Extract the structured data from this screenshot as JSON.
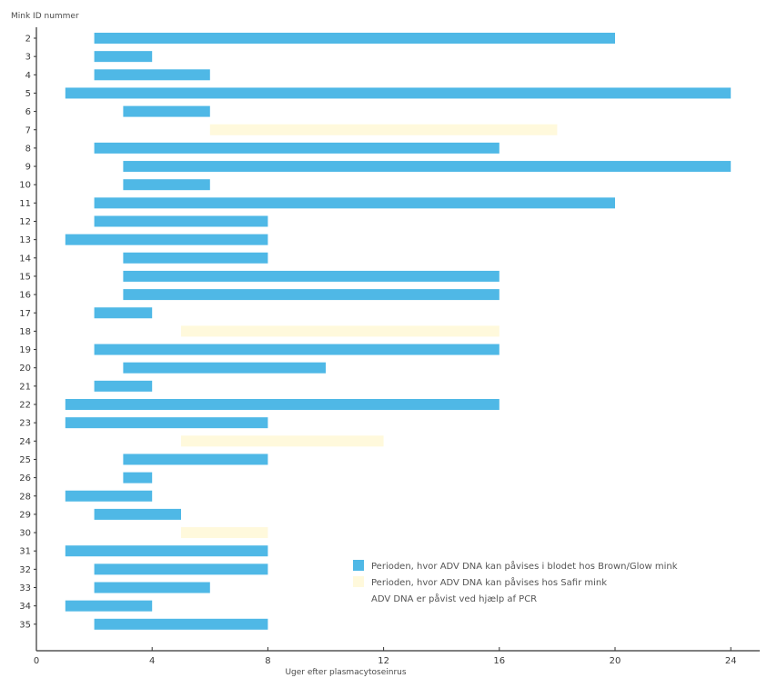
{
  "chart_data": {
    "type": "bar",
    "orientation": "horizontal",
    "title": "",
    "ylabel": "Mink ID nummer",
    "xlabel": "Uger efter plasmacytoseinrus",
    "xlim": [
      0,
      25
    ],
    "xticks": [
      0,
      4,
      8,
      12,
      16,
      20,
      24
    ],
    "grid": false,
    "legend_position": "bottom-right",
    "colors": {
      "brown_glow": "#4fb8e6",
      "safir": "#fff9dc",
      "axis": "#333333"
    },
    "rows": [
      {
        "id": "2",
        "start": 2,
        "end": 20,
        "group": "brown_glow"
      },
      {
        "id": "3",
        "start": 2,
        "end": 4,
        "group": "brown_glow"
      },
      {
        "id": "4",
        "start": 2,
        "end": 6,
        "group": "brown_glow"
      },
      {
        "id": "5",
        "start": 1,
        "end": 24,
        "group": "brown_glow"
      },
      {
        "id": "6",
        "start": 3,
        "end": 6,
        "group": "brown_glow"
      },
      {
        "id": "7",
        "start": 6,
        "end": 18,
        "group": "safir"
      },
      {
        "id": "8",
        "start": 2,
        "end": 16,
        "group": "brown_glow"
      },
      {
        "id": "9",
        "start": 3,
        "end": 24,
        "group": "brown_glow"
      },
      {
        "id": "10",
        "start": 3,
        "end": 6,
        "group": "brown_glow"
      },
      {
        "id": "11",
        "start": 2,
        "end": 20,
        "group": "brown_glow"
      },
      {
        "id": "12",
        "start": 2,
        "end": 8,
        "group": "brown_glow"
      },
      {
        "id": "13",
        "start": 1,
        "end": 8,
        "group": "brown_glow"
      },
      {
        "id": "14",
        "start": 3,
        "end": 8,
        "group": "brown_glow"
      },
      {
        "id": "15",
        "start": 3,
        "end": 16,
        "group": "brown_glow"
      },
      {
        "id": "16",
        "start": 3,
        "end": 16,
        "group": "brown_glow"
      },
      {
        "id": "17",
        "start": 2,
        "end": 4,
        "group": "brown_glow"
      },
      {
        "id": "18",
        "start": 5,
        "end": 16,
        "group": "safir"
      },
      {
        "id": "19",
        "start": 2,
        "end": 16,
        "group": "brown_glow"
      },
      {
        "id": "20",
        "start": 3,
        "end": 10,
        "group": "brown_glow"
      },
      {
        "id": "21",
        "start": 2,
        "end": 4,
        "group": "brown_glow"
      },
      {
        "id": "22",
        "start": 1,
        "end": 16,
        "group": "brown_glow"
      },
      {
        "id": "23",
        "start": 1,
        "end": 8,
        "group": "brown_glow"
      },
      {
        "id": "24",
        "start": 5,
        "end": 12,
        "group": "safir"
      },
      {
        "id": "25",
        "start": 3,
        "end": 8,
        "group": "brown_glow"
      },
      {
        "id": "26",
        "start": 3,
        "end": 4,
        "group": "brown_glow"
      },
      {
        "id": "28",
        "start": 1,
        "end": 4,
        "group": "brown_glow"
      },
      {
        "id": "29",
        "start": 2,
        "end": 5,
        "group": "brown_glow"
      },
      {
        "id": "30",
        "start": 5,
        "end": 8,
        "group": "safir"
      },
      {
        "id": "31",
        "start": 1,
        "end": 8,
        "group": "brown_glow"
      },
      {
        "id": "32",
        "start": 2,
        "end": 8,
        "group": "brown_glow"
      },
      {
        "id": "33",
        "start": 2,
        "end": 6,
        "group": "brown_glow"
      },
      {
        "id": "34",
        "start": 1,
        "end": 4,
        "group": "brown_glow"
      },
      {
        "id": "35",
        "start": 2,
        "end": 8,
        "group": "brown_glow"
      }
    ],
    "legend": [
      {
        "key": "brown_glow",
        "label": "Perioden, hvor ADV DNA kan påvises i blodet hos Brown/Glow mink"
      },
      {
        "key": "safir",
        "label": "Perioden, hvor ADV DNA kan påvises hos Safir mink"
      },
      {
        "key": "note",
        "label": "ADV DNA er påvist ved hjælp af PCR"
      }
    ]
  }
}
